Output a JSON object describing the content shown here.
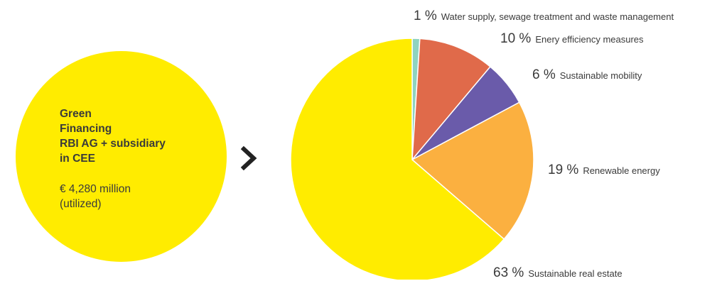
{
  "summary": {
    "lines": [
      "Green",
      "Financing",
      "RBI AG + subsidiary",
      "in CEE"
    ],
    "amount": "€ 4,280 million",
    "amount_note": "(utilized)",
    "color": "#FFEC00"
  },
  "arrow_icon": "chevron-right-icon",
  "chart_data": {
    "type": "pie",
    "title": "",
    "slices": [
      {
        "label": "Water supply, sewage treatment and waste management",
        "percent_label": "1 %",
        "value": 1,
        "color": "#8FD3C0"
      },
      {
        "label": "Enery efficiency measures",
        "percent_label": "10 %",
        "value": 10,
        "color": "#E06A4A"
      },
      {
        "label": "Sustainable mobility",
        "percent_label": "6 %",
        "value": 6,
        "color": "#6A5BAA"
      },
      {
        "label": "Renewable energy",
        "percent_label": "19 %",
        "value": 19,
        "color": "#FBB040"
      },
      {
        "label": "Sustainable real estate",
        "percent_label": "63 %",
        "value": 63,
        "color": "#FFEC00"
      }
    ]
  }
}
